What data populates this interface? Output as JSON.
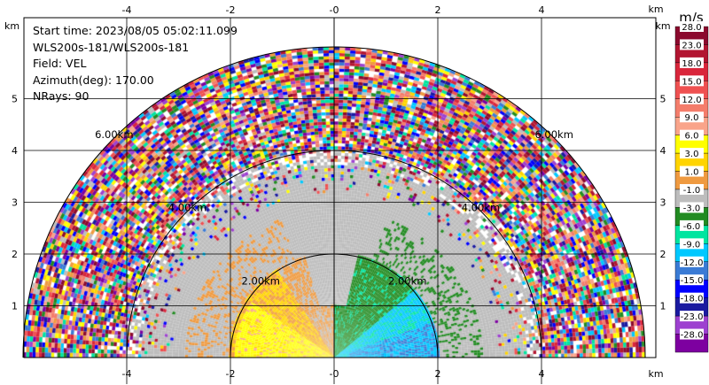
{
  "info": {
    "start_time": "Start time: 2023/08/05 05:02:11.099",
    "instrument": "WLS200s-181/WLS200s-181",
    "field": "Field: VEL",
    "azimuth": "Azimuth(deg): 170.00",
    "nrays": "NRays: 90"
  },
  "chart_data": {
    "type": "heatmap",
    "projection": "RHI half-disc (polar sector scan)",
    "x_unit": "km",
    "y_unit": "km",
    "x_ticks": [
      -4,
      -2,
      0,
      2,
      4
    ],
    "y_ticks": [
      1,
      2,
      3,
      4,
      5
    ],
    "xlim": [
      -6.1,
      6.1
    ],
    "ylim": [
      0,
      6.0
    ],
    "range_rings_km": [
      2,
      4,
      6
    ],
    "ring_labels": [
      "2.00km",
      "4.00km",
      "6.00km"
    ],
    "max_range_km": 6.0,
    "grid": true,
    "colorbar": {
      "title": "m/s",
      "labels": [
        "28.0",
        "23.0",
        "18.0",
        "15.0",
        "12.0",
        "9.0",
        "6.0",
        "3.0",
        "1.0",
        "-1.0",
        "-3.0",
        "-6.0",
        "-9.0",
        "-12.0",
        "-15.0",
        "-18.0",
        "-23.0",
        "-28.0"
      ],
      "colors": [
        "#8b0a2e",
        "#b21531",
        "#d9263b",
        "#ef5151",
        "#f47d6b",
        "#f9a48a",
        "#ffff00",
        "#ffd400",
        "#ef9a40",
        "#bdbdbd",
        "#228b22",
        "#00e5a0",
        "#00c8ff",
        "#3a7bd5",
        "#0000ff",
        "#1a1aa0",
        "#9d40d0",
        "#7d00a0"
      ]
    },
    "regions": [
      {
        "description": "near-range left sector",
        "range_km": [
          0,
          2.2
        ],
        "velocity_ms": [
          3,
          9
        ]
      },
      {
        "description": "near-range right sector",
        "range_km": [
          0,
          2.2
        ],
        "velocity_ms": [
          -15,
          -3
        ]
      },
      {
        "description": "mid-range",
        "range_km": [
          2.0,
          4.0
        ],
        "velocity_ms": [
          -1,
          1
        ]
      },
      {
        "description": "far-range noise",
        "range_km": [
          4.0,
          6.0
        ],
        "velocity_ms": [
          -28,
          28
        ]
      }
    ]
  }
}
